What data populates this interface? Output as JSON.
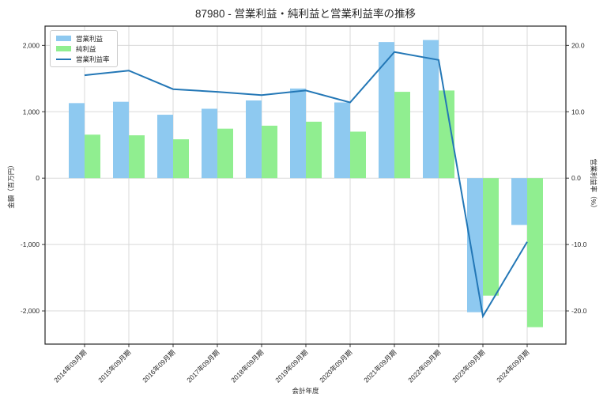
{
  "chart_data": {
    "type": "bar",
    "title": "87980 - 営業利益・純利益と営業利益率の推移",
    "xlabel": "会計年度",
    "categories": [
      "2014年09月期",
      "2015年09月期",
      "2016年09月期",
      "2017年09月期",
      "2018年09月期",
      "2019年09月期",
      "2020年09月期",
      "2021年09月期",
      "2022年09月期",
      "2023年09月期",
      "2024年09月期"
    ],
    "series": [
      {
        "name": "営業利益",
        "type": "bar",
        "axis": "left",
        "color": "#8ec9f0",
        "values": [
          1130,
          1150,
          955,
          1045,
          1170,
          1350,
          1140,
          2050,
          2080,
          -2020,
          -705
        ]
      },
      {
        "name": "純利益",
        "type": "bar",
        "axis": "left",
        "color": "#90ee90",
        "values": [
          655,
          645,
          585,
          745,
          790,
          850,
          700,
          1300,
          1320,
          -1770,
          -2245
        ]
      },
      {
        "name": "営業利益率",
        "type": "line",
        "axis": "right",
        "color": "#2377b6",
        "values": [
          15.5,
          16.2,
          13.4,
          13.0,
          12.5,
          13.2,
          11.4,
          19.0,
          17.8,
          -20.8,
          -9.6
        ]
      }
    ],
    "axis_left": {
      "label": "金額（百万円）",
      "range": [
        -2500,
        2290
      ],
      "ticks": [
        {
          "label": "2,000",
          "value": 2000
        },
        {
          "label": "1,000",
          "value": 1000
        },
        {
          "label": "0",
          "value": 0
        },
        {
          "label": "-1,000",
          "value": -1000
        },
        {
          "label": "-2,000",
          "value": -2000
        }
      ]
    },
    "axis_right": {
      "label": "営業利益率（%）",
      "range": [
        -25,
        22.9
      ],
      "ticks": [
        {
          "label": "20.0",
          "value": 20
        },
        {
          "label": "10.0",
          "value": 10
        },
        {
          "label": "0.0",
          "value": 0
        },
        {
          "label": "-10.0",
          "value": -10
        },
        {
          "label": "-20.0",
          "value": -20
        }
      ]
    },
    "grid": true,
    "legend_position": "upper-left",
    "colors": {
      "grid": "#d9d9d9",
      "spine": "#262626",
      "background": "#ffffff"
    }
  }
}
